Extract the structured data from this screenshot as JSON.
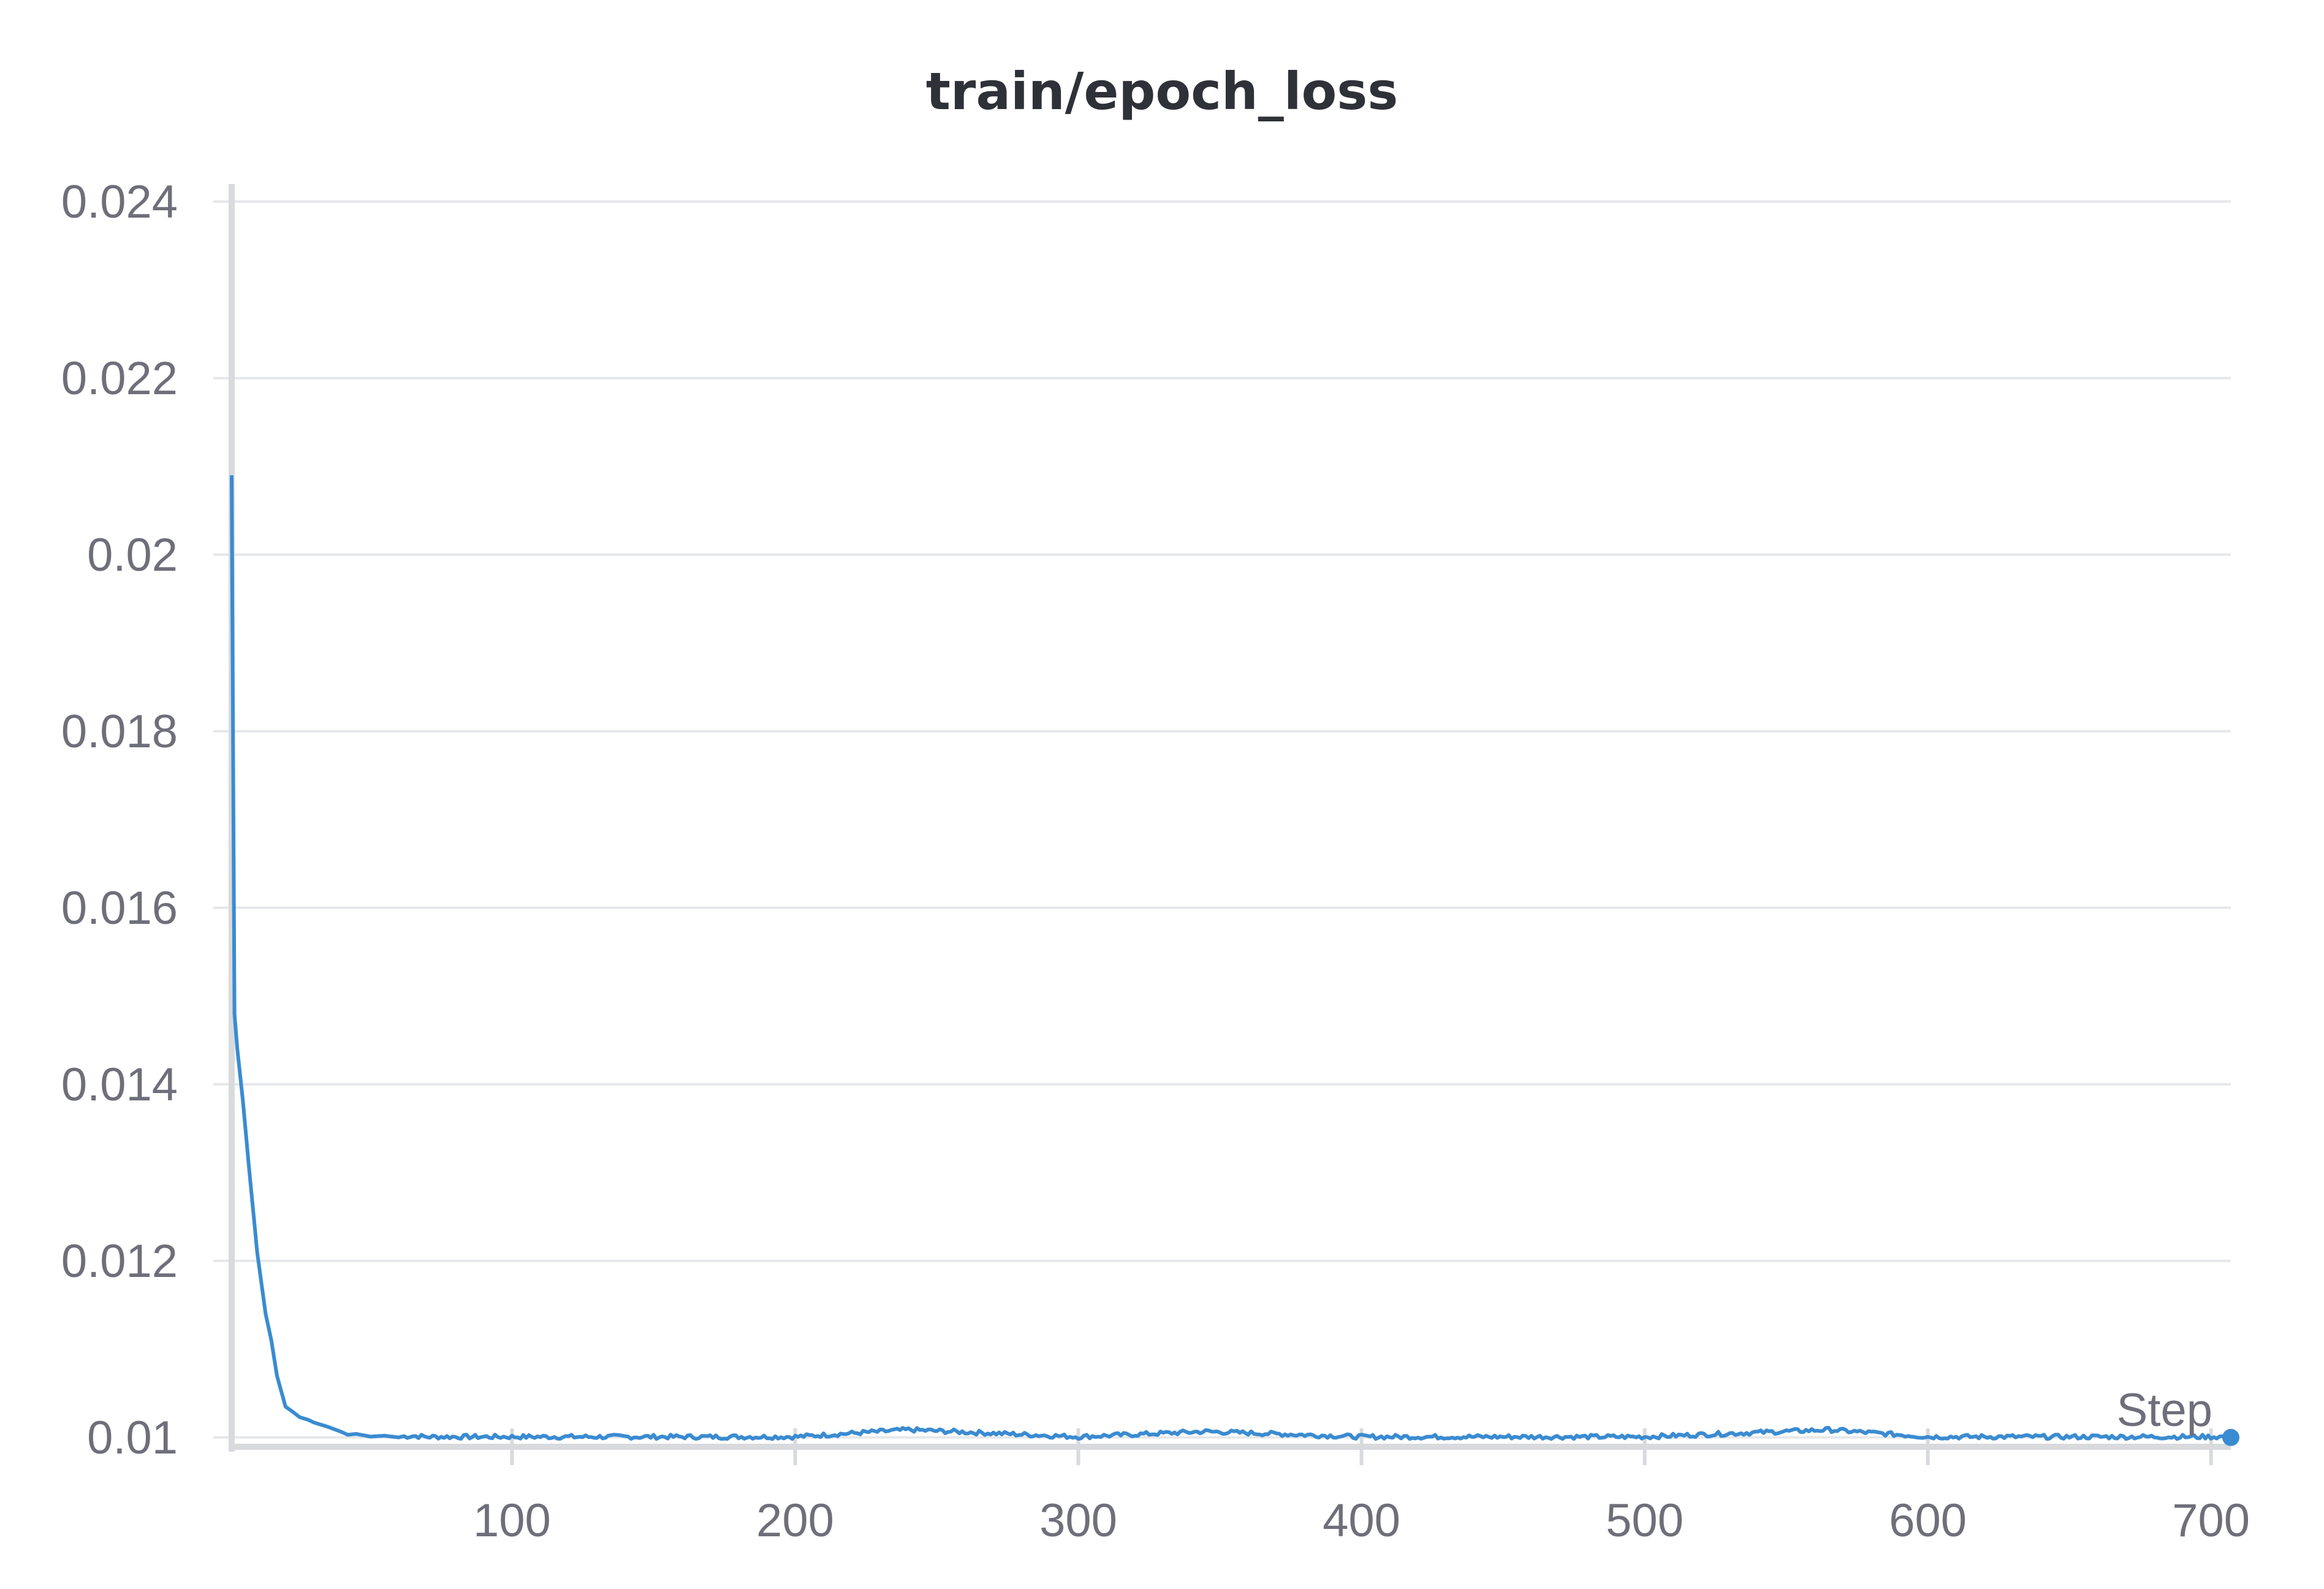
{
  "chart_data": {
    "type": "line",
    "title": "train/epoch_loss",
    "xlabel": "Step",
    "ylabel": "",
    "xlim": [
      1,
      707
    ],
    "ylim": [
      0.00995,
      0.0242
    ],
    "x_ticks": [
      100,
      200,
      300,
      400,
      500,
      600,
      700
    ],
    "x_tick_labels": [
      "100",
      "200",
      "300",
      "400",
      "500",
      "600",
      "700"
    ],
    "y_ticks": [
      0.01,
      0.012,
      0.014,
      0.016,
      0.018,
      0.02,
      0.022,
      0.024
    ],
    "y_tick_labels": [
      "0.01",
      "0.012",
      "0.014",
      "0.016",
      "0.018",
      "0.02",
      "0.022",
      "0.024"
    ],
    "grid": true,
    "legend": "none",
    "colors": {
      "series": "#3a8bd1",
      "grid": "#e6e7ea",
      "axis": "#d9dadd",
      "text": "#6e6f7a",
      "title": "#2f3138"
    },
    "series": [
      {
        "x": [
          1,
          2,
          3,
          5,
          7,
          10,
          13,
          15,
          17,
          20,
          23,
          25,
          28,
          30,
          35,
          40,
          42,
          45,
          50,
          55,
          60,
          65,
          70,
          80,
          100,
          150,
          200,
          240,
          300,
          345,
          400,
          450,
          500,
          565,
          600,
          650,
          700,
          707
        ],
        "y": [
          0.0209,
          0.0148,
          0.0144,
          0.0138,
          0.0131,
          0.0121,
          0.0114,
          0.0111,
          0.0107,
          0.01035,
          0.01028,
          0.01023,
          0.0102,
          0.01017,
          0.01012,
          0.01006,
          0.01003,
          0.01004,
          0.01001,
          0.01002,
          0.01,
          0.01001,
          0.01,
          0.01,
          0.01,
          0.01,
          0.01,
          0.01008,
          0.01,
          0.01006,
          0.01,
          0.01,
          0.01,
          0.01008,
          0.01,
          0.01,
          0.01,
          0.01
        ]
      }
    ]
  }
}
